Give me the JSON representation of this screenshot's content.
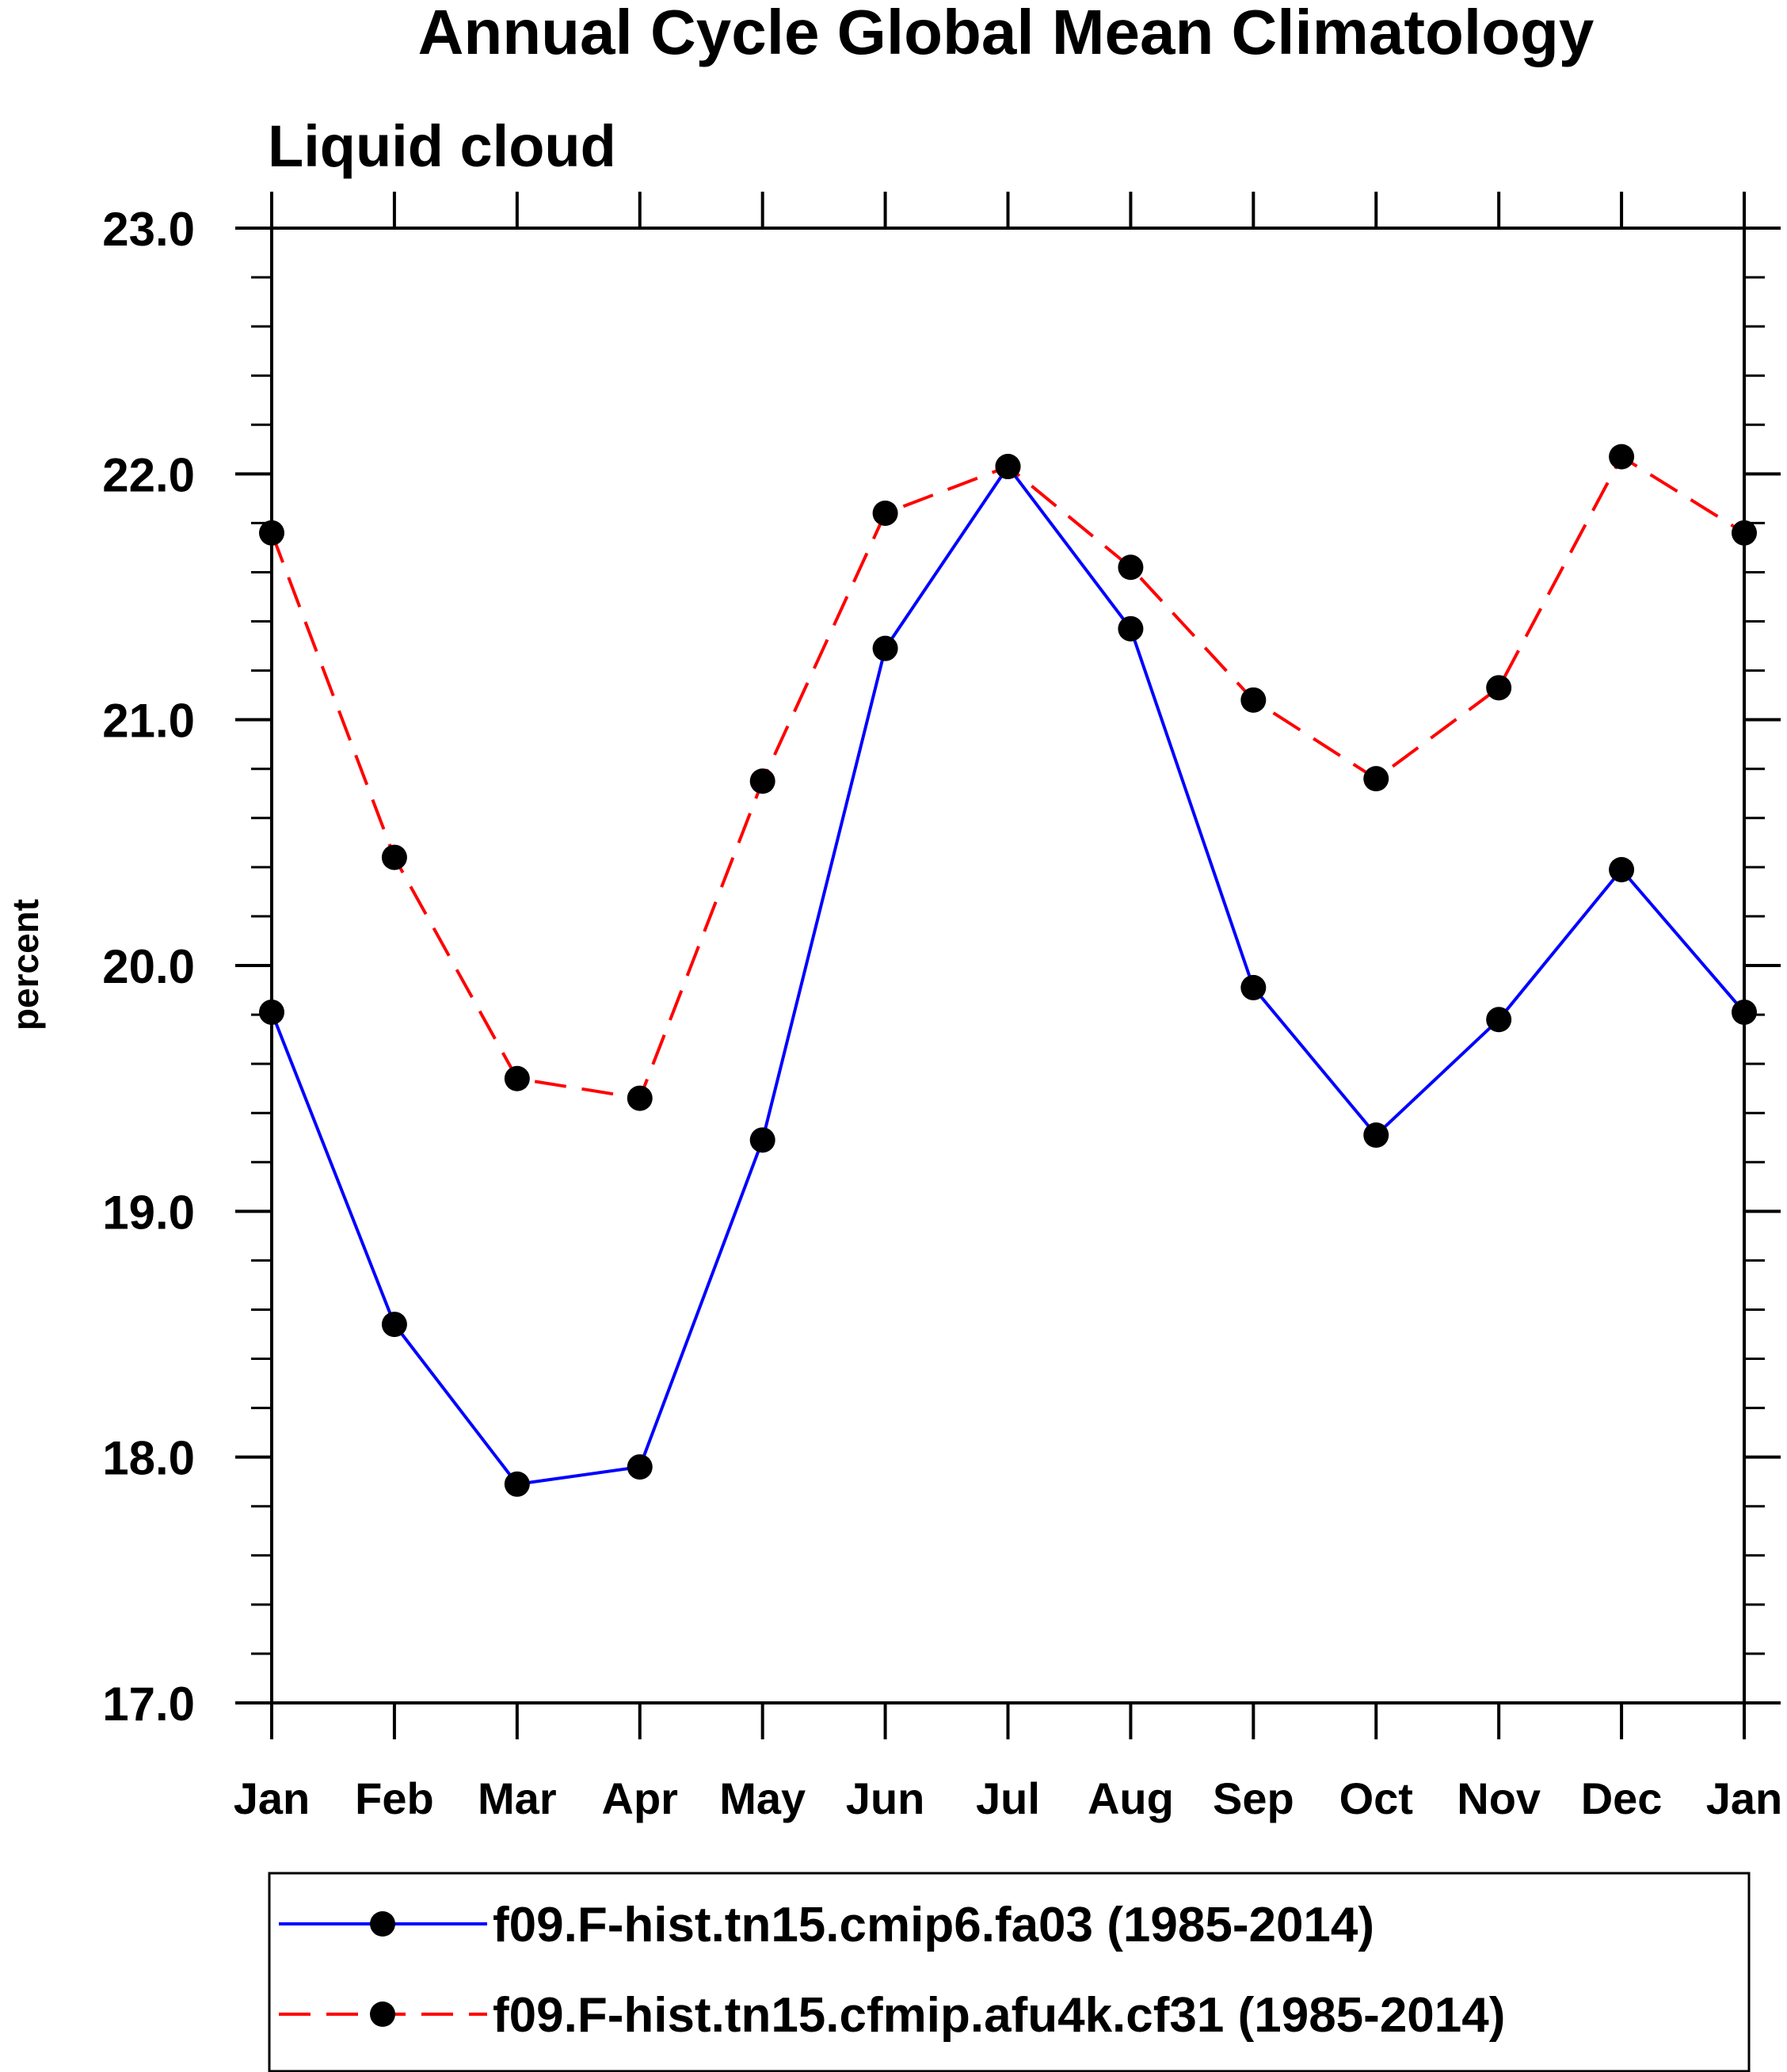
{
  "chart_data": {
    "type": "line",
    "title": "Annual Cycle Global Mean Climatology",
    "subtitle": "Liquid cloud",
    "xlabel": "",
    "ylabel": "percent",
    "categories": [
      "Jan",
      "Feb",
      "Mar",
      "Apr",
      "May",
      "Jun",
      "Jul",
      "Aug",
      "Sep",
      "Oct",
      "Nov",
      "Dec",
      "Jan"
    ],
    "ylim": [
      17.0,
      23.0
    ],
    "yticks": [
      "17.0",
      "18.0",
      "19.0",
      "20.0",
      "21.0",
      "22.0",
      "23.0"
    ],
    "grid": false,
    "legend_position": "bottom",
    "series": [
      {
        "name": "f09.F-hist.tn15.cmip6.fa03 (1985-2014)",
        "color": "#0000ff",
        "dash": "solid",
        "values": [
          19.81,
          18.54,
          17.89,
          17.96,
          19.29,
          21.29,
          22.03,
          21.37,
          19.91,
          19.31,
          19.78,
          20.39,
          19.81
        ]
      },
      {
        "name": "f09.F-hist.tn15.cfmip.afu4k.cf31 (1985-2014)",
        "color": "#ff0000",
        "dash": "dashed",
        "values": [
          21.76,
          20.44,
          19.54,
          19.46,
          20.75,
          21.84,
          22.03,
          21.62,
          21.08,
          20.76,
          21.13,
          22.07,
          21.76
        ]
      }
    ]
  }
}
